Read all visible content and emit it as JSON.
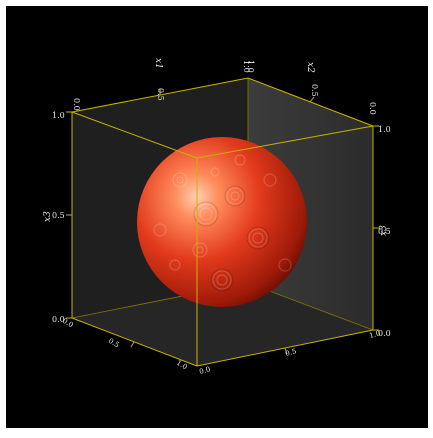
{
  "colors": {
    "background": "#000000",
    "box_edge": "#c8b400",
    "sphere": "#e23a1c",
    "tick_label": "#e8e8e8"
  },
  "axes": {
    "x1": {
      "label": "x1",
      "ticks": [
        "0.0",
        "0.5",
        "1.0"
      ]
    },
    "x2": {
      "label": "x2",
      "ticks": [
        "0.0",
        "0.5",
        "1.0"
      ]
    },
    "x3": {
      "label": "x3",
      "ticks_left": [
        "0.0",
        "0.5",
        "1.0"
      ],
      "ticks_right": [
        "0.0",
        "0.5",
        "1.0"
      ],
      "label_left": "x3",
      "label_right": "x3"
    },
    "bottom": {
      "ticks_left": [
        "0.0",
        "0.5",
        "1.0"
      ],
      "ticks_right": [
        "0.0",
        "0.5",
        "1.0"
      ]
    }
  }
}
